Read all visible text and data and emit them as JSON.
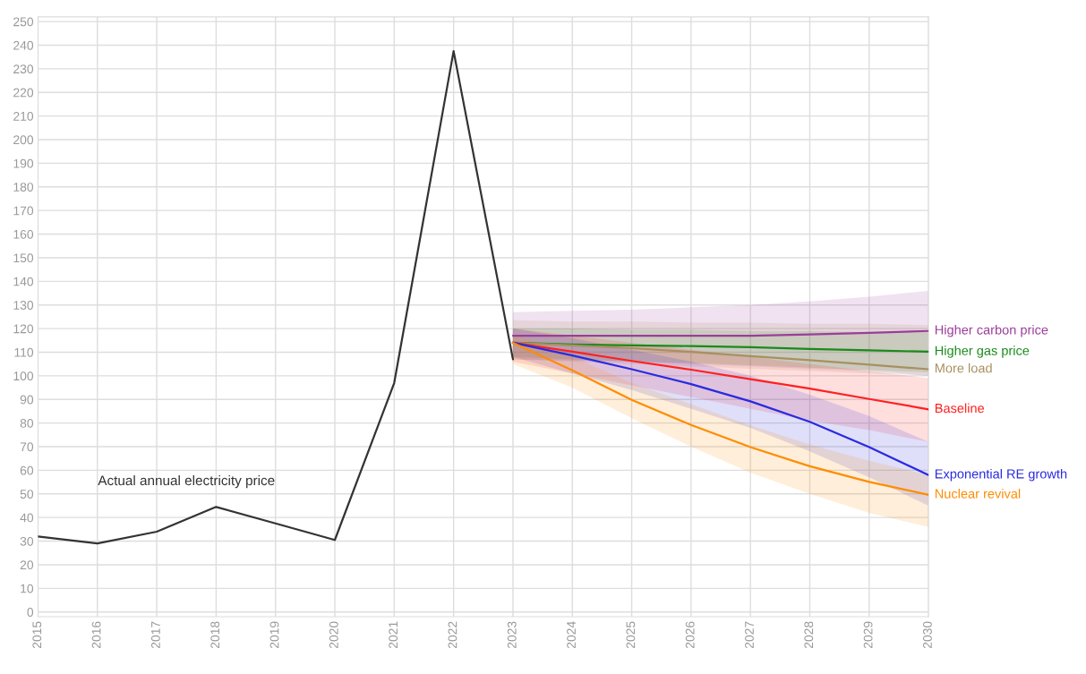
{
  "chart_data": {
    "type": "line",
    "xlim": [
      2015,
      2030
    ],
    "xticks": [
      2015,
      2016,
      2017,
      2018,
      2019,
      2020,
      2021,
      2022,
      2023,
      2024,
      2025,
      2026,
      2027,
      2028,
      2029,
      2030
    ],
    "ylim": [
      -2,
      252
    ],
    "yticks": [
      0,
      10,
      20,
      30,
      40,
      50,
      60,
      70,
      80,
      90,
      100,
      110,
      120,
      130,
      140,
      150,
      160,
      170,
      180,
      190,
      200,
      210,
      220,
      230,
      240,
      250
    ],
    "grid": true,
    "legend": false,
    "series": [
      {
        "name": "Actual annual electricity price",
        "color": "#333333",
        "x": [
          2015,
          2016,
          2017,
          2018,
          2019,
          2020,
          2021,
          2022,
          2023
        ],
        "values": [
          32,
          29,
          34,
          44.5,
          37.5,
          30.5,
          97,
          237.5,
          107
        ]
      },
      {
        "name": "Higher carbon price",
        "color": "#9b3d9b",
        "x": [
          2023,
          2024,
          2025,
          2026,
          2027,
          2028,
          2029,
          2030
        ],
        "values": [
          117,
          117,
          117,
          117,
          117,
          117.5,
          118.2,
          119
        ],
        "upper": [
          127,
          127.5,
          128,
          129,
          130,
          131.5,
          133.5,
          136
        ],
        "lower": [
          107,
          106.5,
          106,
          105,
          104,
          103,
          102,
          100
        ]
      },
      {
        "name": "Higher gas price",
        "color": "#1a8a1a",
        "x": [
          2023,
          2024,
          2025,
          2026,
          2027,
          2028,
          2029,
          2030
        ],
        "values": [
          114,
          113.3,
          112.9,
          112.6,
          112.1,
          111.4,
          110.8,
          110.2
        ],
        "upper": [
          120,
          120,
          119.5,
          119.5,
          119,
          119,
          118.5,
          118.5
        ],
        "lower": [
          108,
          107,
          106,
          105.5,
          104.5,
          103.5,
          102.5,
          101.5
        ]
      },
      {
        "name": "More load",
        "color": "#a89060",
        "x": [
          2023,
          2024,
          2025,
          2026,
          2027,
          2028,
          2029,
          2030
        ],
        "values": [
          114,
          112.9,
          111.7,
          110.1,
          108.3,
          106.6,
          104.7,
          102.8
        ],
        "upper": [
          123.5,
          123,
          123,
          122.5,
          122.5,
          122,
          122,
          121.5
        ],
        "lower": [
          107,
          106,
          105,
          104,
          103,
          102,
          101,
          100
        ]
      },
      {
        "name": "Baseline",
        "color": "#ff2020",
        "x": [
          2023,
          2024,
          2025,
          2026,
          2027,
          2028,
          2029,
          2030
        ],
        "values": [
          114,
          110.2,
          106.3,
          102.6,
          98.6,
          94.6,
          90.2,
          85.8
        ],
        "upper": [
          120,
          117,
          114,
          111,
          108,
          105,
          102,
          99
        ],
        "lower": [
          106,
          101,
          96,
          91,
          86,
          81,
          77,
          72
        ]
      },
      {
        "name": "Exponential RE growth",
        "color": "#2a2ae0",
        "x": [
          2023,
          2024,
          2025,
          2026,
          2027,
          2028,
          2029,
          2030
        ],
        "values": [
          114,
          108.6,
          102.8,
          96.5,
          89.2,
          80.5,
          69.8,
          58
        ],
        "upper": [
          120,
          116,
          111,
          106,
          100,
          92,
          83,
          72
        ],
        "lower": [
          108,
          101,
          94,
          86,
          78,
          68,
          57,
          45
        ]
      },
      {
        "name": "Nuclear revival",
        "color": "#ff8c00",
        "x": [
          2023,
          2024,
          2025,
          2026,
          2027,
          2028,
          2029,
          2030
        ],
        "values": [
          114,
          102.3,
          89.8,
          79.2,
          69.8,
          61.7,
          55.1,
          49.6
        ],
        "upper": [
          118,
          108,
          97,
          88,
          79,
          71,
          64,
          58
        ],
        "lower": [
          105,
          95,
          82,
          70,
          59,
          50,
          42,
          36
        ]
      }
    ]
  }
}
